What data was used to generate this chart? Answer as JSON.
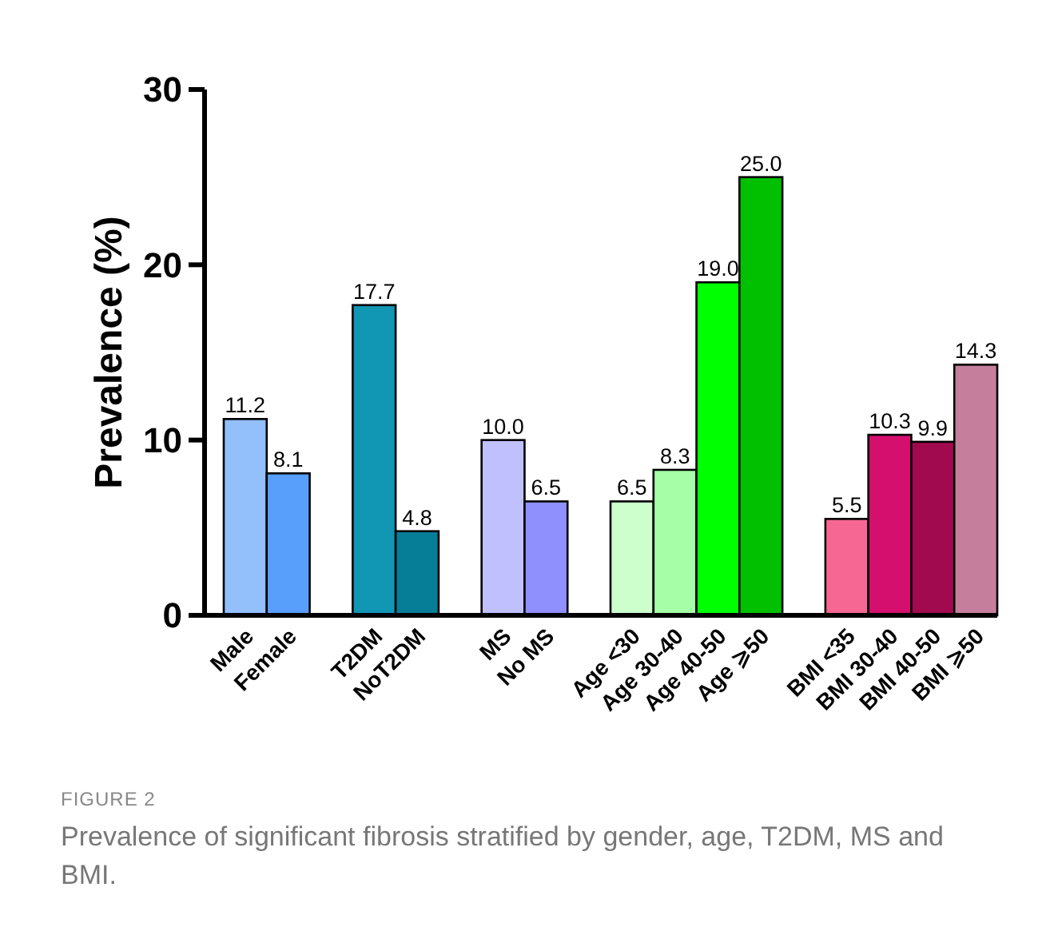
{
  "chart_data": {
    "type": "bar",
    "ylabel": "Prevalence (%)",
    "categories": [
      "Male",
      "Female",
      null,
      "T2DM",
      "NoT2DM",
      null,
      "MS",
      "No MS",
      null,
      "Age <30",
      "Age 30-40",
      "Age 40-50",
      "Age ⩾50",
      null,
      "BMI <35",
      "BMI 30-40",
      "BMI 40-50",
      "BMI ⩾50"
    ],
    "values": [
      11.2,
      8.1,
      null,
      17.7,
      4.8,
      null,
      10.0,
      6.5,
      null,
      6.5,
      8.3,
      19.0,
      25.0,
      null,
      5.5,
      10.3,
      9.9,
      14.3
    ],
    "value_labels": [
      "11.2",
      "8.1",
      null,
      "17.7",
      "4.8",
      null,
      "10.0",
      "6.5",
      null,
      "6.5",
      "8.3",
      "19.0",
      "25.0",
      null,
      "5.5",
      "10.3",
      "9.9",
      "14.3"
    ],
    "colors": [
      "#93bffa",
      "#579ffa",
      null,
      "#1196b3",
      "#077e98",
      null,
      "#c0c0ff",
      "#8f8ffd",
      null,
      "#ccffcc",
      "#a6ffa6",
      "#00ff00",
      "#00c000",
      null,
      "#f76794",
      "#d40f6e",
      "#a20a50",
      "#c57f9d"
    ],
    "ylim": [
      0,
      30
    ],
    "yticks": [
      0,
      10,
      20,
      30
    ],
    "annotations": [
      "FIGURE 2",
      "Prevalence of significant fibrosis stratified by gender, age, T2DM, MS and BMI."
    ]
  }
}
